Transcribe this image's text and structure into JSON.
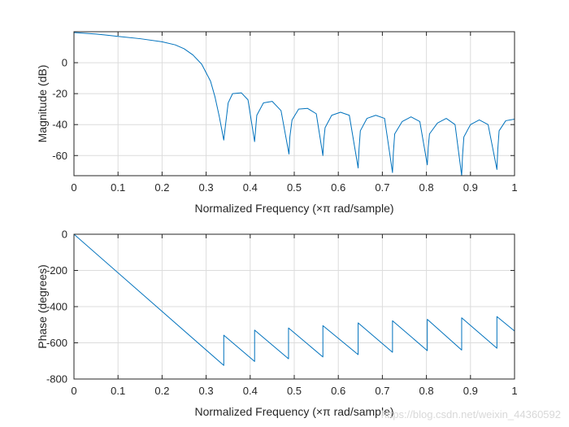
{
  "chart_data": [
    {
      "type": "line",
      "xlabel": "Normalized Frequency  (×π rad/sample)",
      "ylabel": "Magnitude (dB)",
      "xlim": [
        0,
        1
      ],
      "ylim": [
        -73,
        20
      ],
      "xticks": [
        0,
        0.1,
        0.2,
        0.3,
        0.4,
        0.5,
        0.6,
        0.7,
        0.8,
        0.9,
        1
      ],
      "xtick_labels": [
        "0",
        "0.1",
        "0.2",
        "0.3",
        "0.4",
        "0.5",
        "0.6",
        "0.7",
        "0.8",
        "0.9",
        "1"
      ],
      "yticks": [
        -60,
        -40,
        -20,
        0
      ],
      "ytick_labels": [
        "-60",
        "-40",
        "-20",
        "0"
      ],
      "grid": true,
      "color": "#0072BD",
      "series": [
        {
          "x": [
            0,
            0.05,
            0.1,
            0.15,
            0.2,
            0.23,
            0.25,
            0.27,
            0.29,
            0.31,
            0.32,
            0.33,
            0.34,
            0.342,
            0.35,
            0.36,
            0.38,
            0.395,
            0.41,
            0.412,
            0.415,
            0.43,
            0.45,
            0.47,
            0.488,
            0.49,
            0.495,
            0.51,
            0.53,
            0.55,
            0.565,
            0.567,
            0.57,
            0.585,
            0.605,
            0.625,
            0.645,
            0.647,
            0.65,
            0.665,
            0.685,
            0.705,
            0.723,
            0.725,
            0.728,
            0.745,
            0.765,
            0.785,
            0.802,
            0.804,
            0.807,
            0.825,
            0.845,
            0.865,
            0.88,
            0.882,
            0.885,
            0.9,
            0.92,
            0.94,
            0.96,
            0.962,
            0.965,
            0.98,
            1
          ],
          "y": [
            19.5,
            18.5,
            17,
            15.5,
            13.5,
            11.5,
            9,
            5,
            -1,
            -12,
            -22,
            -35,
            -50,
            -45,
            -26,
            -20,
            -19.5,
            -24,
            -51,
            -44,
            -34,
            -26,
            -25,
            -31,
            -59,
            -48,
            -37,
            -30,
            -29.5,
            -33,
            -60,
            -50,
            -42,
            -34,
            -32,
            -34,
            -68,
            -56,
            -44,
            -36,
            -34,
            -36,
            -71,
            -58,
            -46,
            -38,
            -35,
            -38,
            -66,
            -55,
            -46,
            -39,
            -36,
            -40,
            -73,
            -60,
            -48,
            -40,
            -37,
            -40,
            -69,
            -56,
            -44,
            -37.5,
            -36.5
          ]
        }
      ]
    },
    {
      "type": "line",
      "xlabel": "Normalized Frequency  (×π rad/sample)",
      "ylabel": "Phase (degrees)",
      "xlim": [
        0,
        1
      ],
      "ylim": [
        -800,
        0
      ],
      "xticks": [
        0,
        0.1,
        0.2,
        0.3,
        0.4,
        0.5,
        0.6,
        0.7,
        0.8,
        0.9,
        1
      ],
      "xtick_labels": [
        "0",
        "0.1",
        "0.2",
        "0.3",
        "0.4",
        "0.5",
        "0.6",
        "0.7",
        "0.8",
        "0.9",
        "1"
      ],
      "yticks": [
        -800,
        -600,
        -400,
        -200,
        0
      ],
      "ytick_labels": [
        "-800",
        "-600",
        "-400",
        "-200",
        "0"
      ],
      "grid": true,
      "color": "#0072BD",
      "series": [
        {
          "x": [
            0,
            0.34,
            0.34,
            0.41,
            0.41,
            0.487,
            0.487,
            0.565,
            0.565,
            0.645,
            0.645,
            0.723,
            0.723,
            0.802,
            0.802,
            0.88,
            0.88,
            0.96,
            0.96,
            1
          ],
          "y": [
            0,
            -725,
            -558,
            -703,
            -530,
            -688,
            -518,
            -678,
            -505,
            -665,
            -490,
            -652,
            -478,
            -643,
            -470,
            -640,
            -462,
            -630,
            -455,
            -535
          ]
        }
      ]
    }
  ],
  "watermark": "https://blog.csdn.net/weixin_44360592"
}
